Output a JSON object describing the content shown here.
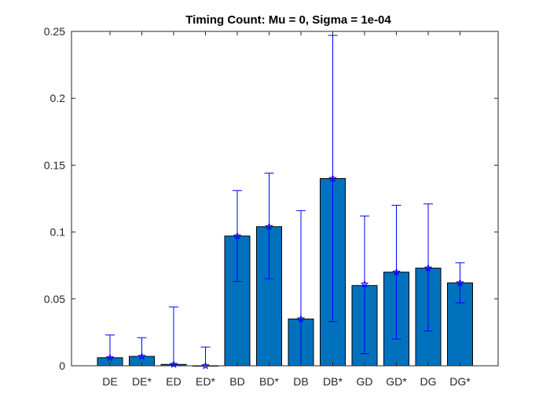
{
  "chart_data": {
    "type": "bar",
    "title": "Timing Count: Mu = 0, Sigma = 1e-04",
    "xlabel": "",
    "ylabel": "",
    "ylim": [
      0,
      0.25
    ],
    "yticks": [
      0,
      0.05,
      0.1,
      0.15,
      0.2,
      0.25
    ],
    "ytick_labels": [
      "0",
      "0.05",
      "0.1",
      "0.15",
      "0.2",
      "0.25"
    ],
    "categories": [
      "DE",
      "DE*",
      "ED",
      "ED*",
      "BD",
      "BD*",
      "DB",
      "DB*",
      "GD",
      "GD*",
      "DG",
      "DG*"
    ],
    "values": [
      0.006,
      0.007,
      0.001,
      0.0,
      0.097,
      0.104,
      0.035,
      0.14,
      0.06,
      0.07,
      0.073,
      0.062
    ],
    "error_low": [
      0.006,
      0.007,
      0.001,
      0.0,
      0.063,
      0.065,
      0.0,
      0.033,
      0.009,
      0.02,
      0.026,
      0.047
    ],
    "error_high": [
      0.023,
      0.021,
      0.044,
      0.014,
      0.131,
      0.144,
      0.116,
      0.247,
      0.112,
      0.12,
      0.121,
      0.077
    ],
    "marker_values": [
      0.006,
      0.007,
      0.001,
      0.0,
      0.097,
      0.104,
      0.035,
      0.14,
      0.061,
      0.07,
      0.073,
      0.062
    ],
    "bar_color": "#0072BD",
    "errorbar_color": "#0000FF",
    "grid": false,
    "legend": "none"
  }
}
